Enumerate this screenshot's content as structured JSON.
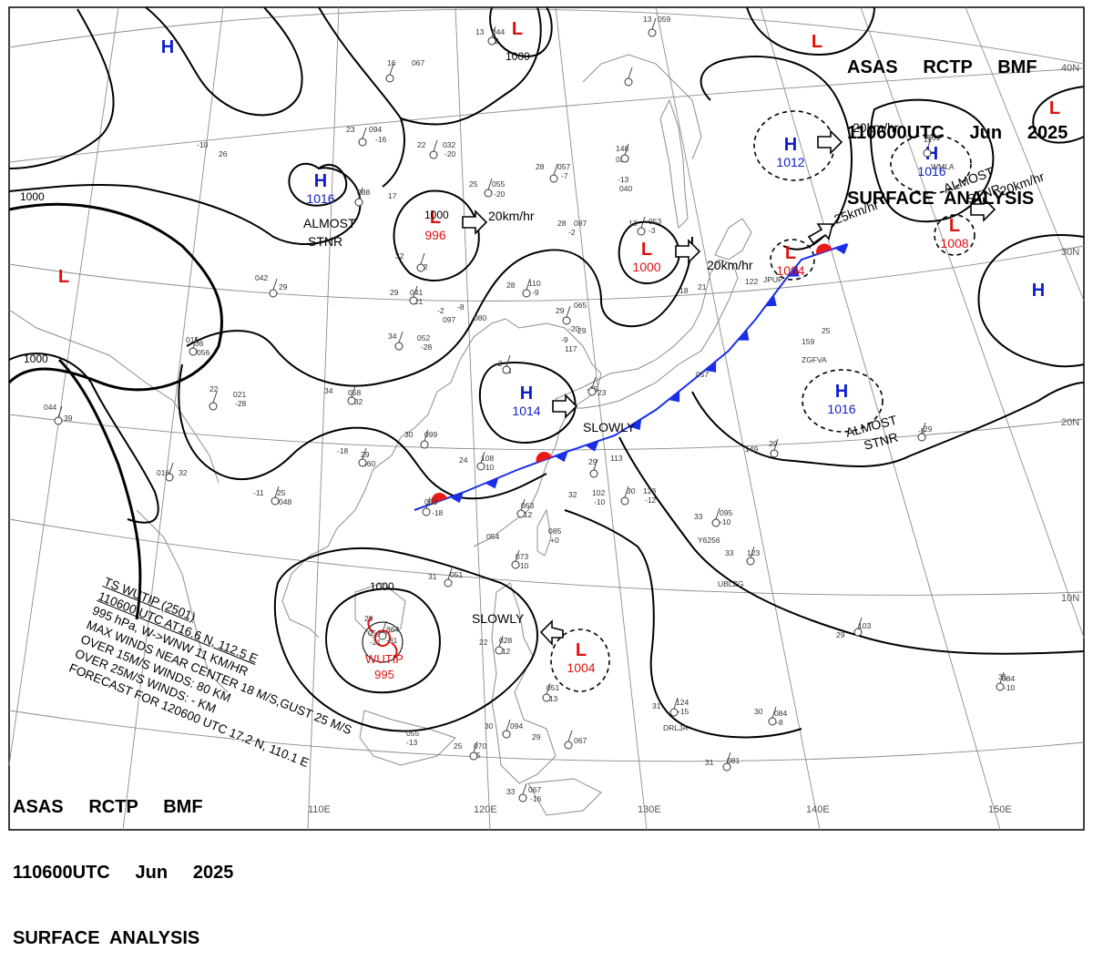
{
  "header": {
    "line1": "ASAS     RCTP     BMF",
    "line2": "110600UTC     Jun     2025",
    "line3": "SURFACE  ANALYSIS"
  },
  "typhoon": {
    "name": "WUTIP",
    "pressure": "995",
    "info_lines": [
      "TS  WUTIP  (2501)",
      "110600 UTC  AT16.6 N, 112.5 E",
      "995 hPa, W->WNW  11 KM/HR",
      "MAX WINDS NEAR CENTER 18 M/S,GUST 25 M/S",
      "OVER 15M/S WINDS:  80 KM",
      "OVER 25M/S WINDS:  - KM",
      "FORECAST FOR 120600 UTC 17.2 N, 110.1 E"
    ]
  },
  "colors": {
    "high": "#1020c8",
    "low": "#e01010",
    "isobar": "#000000",
    "graticule": "#8c8c8c",
    "coast": "#8c8c8c",
    "cold_front": "#1a2ee8",
    "warm_front": "#e81a1a"
  },
  "pressure_centers": [
    {
      "type": "H",
      "value": ""
    },
    {
      "type": "H",
      "value": "1016"
    },
    {
      "type": "L",
      "value": ""
    },
    {
      "type": "L",
      "value": "996"
    },
    {
      "type": "L",
      "value": "1000"
    },
    {
      "type": "L",
      "value": ""
    },
    {
      "type": "H",
      "value": "1014"
    },
    {
      "type": "H",
      "value": "1012"
    },
    {
      "type": "L",
      "value": "1004"
    },
    {
      "type": "L",
      "value": ""
    },
    {
      "type": "L",
      "value": ""
    },
    {
      "type": "H",
      "value": "1016"
    },
    {
      "type": "L",
      "value": "1008"
    },
    {
      "type": "H",
      "value": ""
    },
    {
      "type": "H",
      "value": "1016"
    },
    {
      "type": "L",
      "value": "1004"
    }
  ],
  "isobar_labels": [
    "1000",
    "1000",
    "1000",
    "1000",
    "1000",
    "1000"
  ],
  "motion_labels": [
    "20km/hr",
    "20km/hr",
    "20km/hr",
    "25km/hr",
    "20km/hr"
  ],
  "notes": [
    "ALMOST",
    "STNR",
    "ALMOST",
    "STNR",
    "ALMOST",
    "STNR",
    "SLOWLY",
    "SLOWLY"
  ],
  "longitude_labels": [
    "110E",
    "120E",
    "130E",
    "140E",
    "150E"
  ],
  "latitude_labels": [
    "40N",
    "30N",
    "20N",
    "10N"
  ],
  "stations": [
    {
      "label": "13"
    },
    {
      "label": "044"
    },
    {
      "label": "-2"
    },
    {
      "label": "16"
    },
    {
      "label": "067"
    },
    {
      "label": "23"
    },
    {
      "label": "094"
    },
    {
      "label": "-16"
    },
    {
      "label": "22"
    },
    {
      "label": "032"
    },
    {
      "label": "-20"
    },
    {
      "label": "25"
    },
    {
      "label": "055"
    },
    {
      "label": "-20"
    },
    {
      "label": "28"
    },
    {
      "label": "057"
    },
    {
      "label": "-7"
    },
    {
      "label": "13"
    },
    {
      "label": "053"
    },
    {
      "label": "-3"
    },
    {
      "label": "13"
    },
    {
      "label": "059"
    },
    {
      "label": "28"
    },
    {
      "label": "087"
    },
    {
      "label": "-2"
    },
    {
      "label": "32"
    },
    {
      "label": "-2"
    },
    {
      "label": "29"
    },
    {
      "label": "041"
    },
    {
      "label": "-21"
    },
    {
      "label": "28"
    },
    {
      "label": "110"
    },
    {
      "label": "-9"
    },
    {
      "label": "29"
    },
    {
      "label": "065"
    },
    {
      "label": "34"
    },
    {
      "label": "052"
    },
    {
      "label": "-28"
    },
    {
      "label": "34"
    },
    {
      "label": "058"
    },
    {
      "label": "-32"
    },
    {
      "label": "22"
    },
    {
      "label": "021"
    },
    {
      "label": "-28"
    },
    {
      "label": "30"
    },
    {
      "label": "099"
    },
    {
      "label": "24"
    },
    {
      "label": "108"
    },
    {
      "label": "-10"
    },
    {
      "label": "29"
    },
    {
      "label": "113"
    },
    {
      "label": "32"
    },
    {
      "label": "102"
    },
    {
      "label": "-10"
    },
    {
      "label": "30"
    },
    {
      "label": "123"
    },
    {
      "label": "-12"
    },
    {
      "label": "063"
    },
    {
      "label": "-18"
    },
    {
      "label": "063"
    },
    {
      "label": "-12"
    },
    {
      "label": "054"
    },
    {
      "label": "073"
    },
    {
      "label": "-10"
    },
    {
      "label": "29"
    },
    {
      "label": "054"
    },
    {
      "label": "-21"
    },
    {
      "label": "31"
    },
    {
      "label": "051"
    },
    {
      "label": "22"
    },
    {
      "label": "028"
    },
    {
      "label": "-12"
    },
    {
      "label": "051"
    },
    {
      "label": "-13"
    },
    {
      "label": "30"
    },
    {
      "label": "094"
    },
    {
      "label": "25"
    },
    {
      "label": "070"
    },
    {
      "label": "-5"
    },
    {
      "label": "29"
    },
    {
      "label": "067"
    },
    {
      "label": "055"
    },
    {
      "label": "-13"
    },
    {
      "label": "33"
    },
    {
      "label": "067"
    },
    {
      "label": "-16"
    },
    {
      "label": "33"
    },
    {
      "label": "095"
    },
    {
      "label": "-10"
    },
    {
      "label": "33"
    },
    {
      "label": "123"
    },
    {
      "label": "31"
    },
    {
      "label": "124"
    },
    {
      "label": "-15"
    },
    {
      "label": "30"
    },
    {
      "label": "084"
    },
    {
      "label": "-8"
    },
    {
      "label": "31"
    },
    {
      "label": "081"
    },
    {
      "label": "31"
    },
    {
      "label": "084"
    },
    {
      "label": "-10"
    },
    {
      "label": "29"
    },
    {
      "label": "103"
    },
    {
      "label": "-5"
    },
    {
      "label": "29"
    },
    {
      "label": "149"
    },
    {
      "label": "29"
    },
    {
      "label": "159"
    },
    {
      "label": "25"
    },
    {
      "label": "057"
    },
    {
      "label": "122"
    },
    {
      "label": "18"
    },
    {
      "label": "21"
    },
    {
      "label": "061"
    },
    {
      "label": "11"
    },
    {
      "label": "148"
    },
    {
      "label": "039"
    },
    {
      "label": "-13"
    },
    {
      "label": "040"
    },
    {
      "label": "-10"
    },
    {
      "label": "26"
    },
    {
      "label": "088"
    },
    {
      "label": "17"
    },
    {
      "label": "042"
    },
    {
      "label": "29"
    },
    {
      "label": "016"
    },
    {
      "label": "32"
    },
    {
      "label": "044"
    },
    {
      "label": "39"
    },
    {
      "label": "015"
    },
    {
      "label": "36"
    },
    {
      "label": "056"
    },
    {
      "label": "-11"
    },
    {
      "label": "25"
    },
    {
      "label": "048"
    },
    {
      "label": "-18"
    },
    {
      "label": "29"
    },
    {
      "label": "060"
    },
    {
      "label": "-15"
    },
    {
      "label": "23"
    },
    {
      "label": "-9"
    },
    {
      "label": "117"
    },
    {
      "label": "-2"
    },
    {
      "label": "33"
    },
    {
      "label": "-8"
    },
    {
      "label": "080"
    },
    {
      "label": "-2"
    },
    {
      "label": "097"
    },
    {
      "label": "-20"
    },
    {
      "label": "29"
    },
    {
      "label": "085"
    },
    {
      "label": "+0"
    },
    {
      "label": "864"
    },
    {
      "label": "-81"
    },
    {
      "label": "JPUP"
    },
    {
      "label": "ZGFVA"
    },
    {
      "label": "Y6256"
    },
    {
      "label": "UBLZG"
    },
    {
      "label": "WMLA"
    },
    {
      "label": "DRLJA"
    }
  ]
}
